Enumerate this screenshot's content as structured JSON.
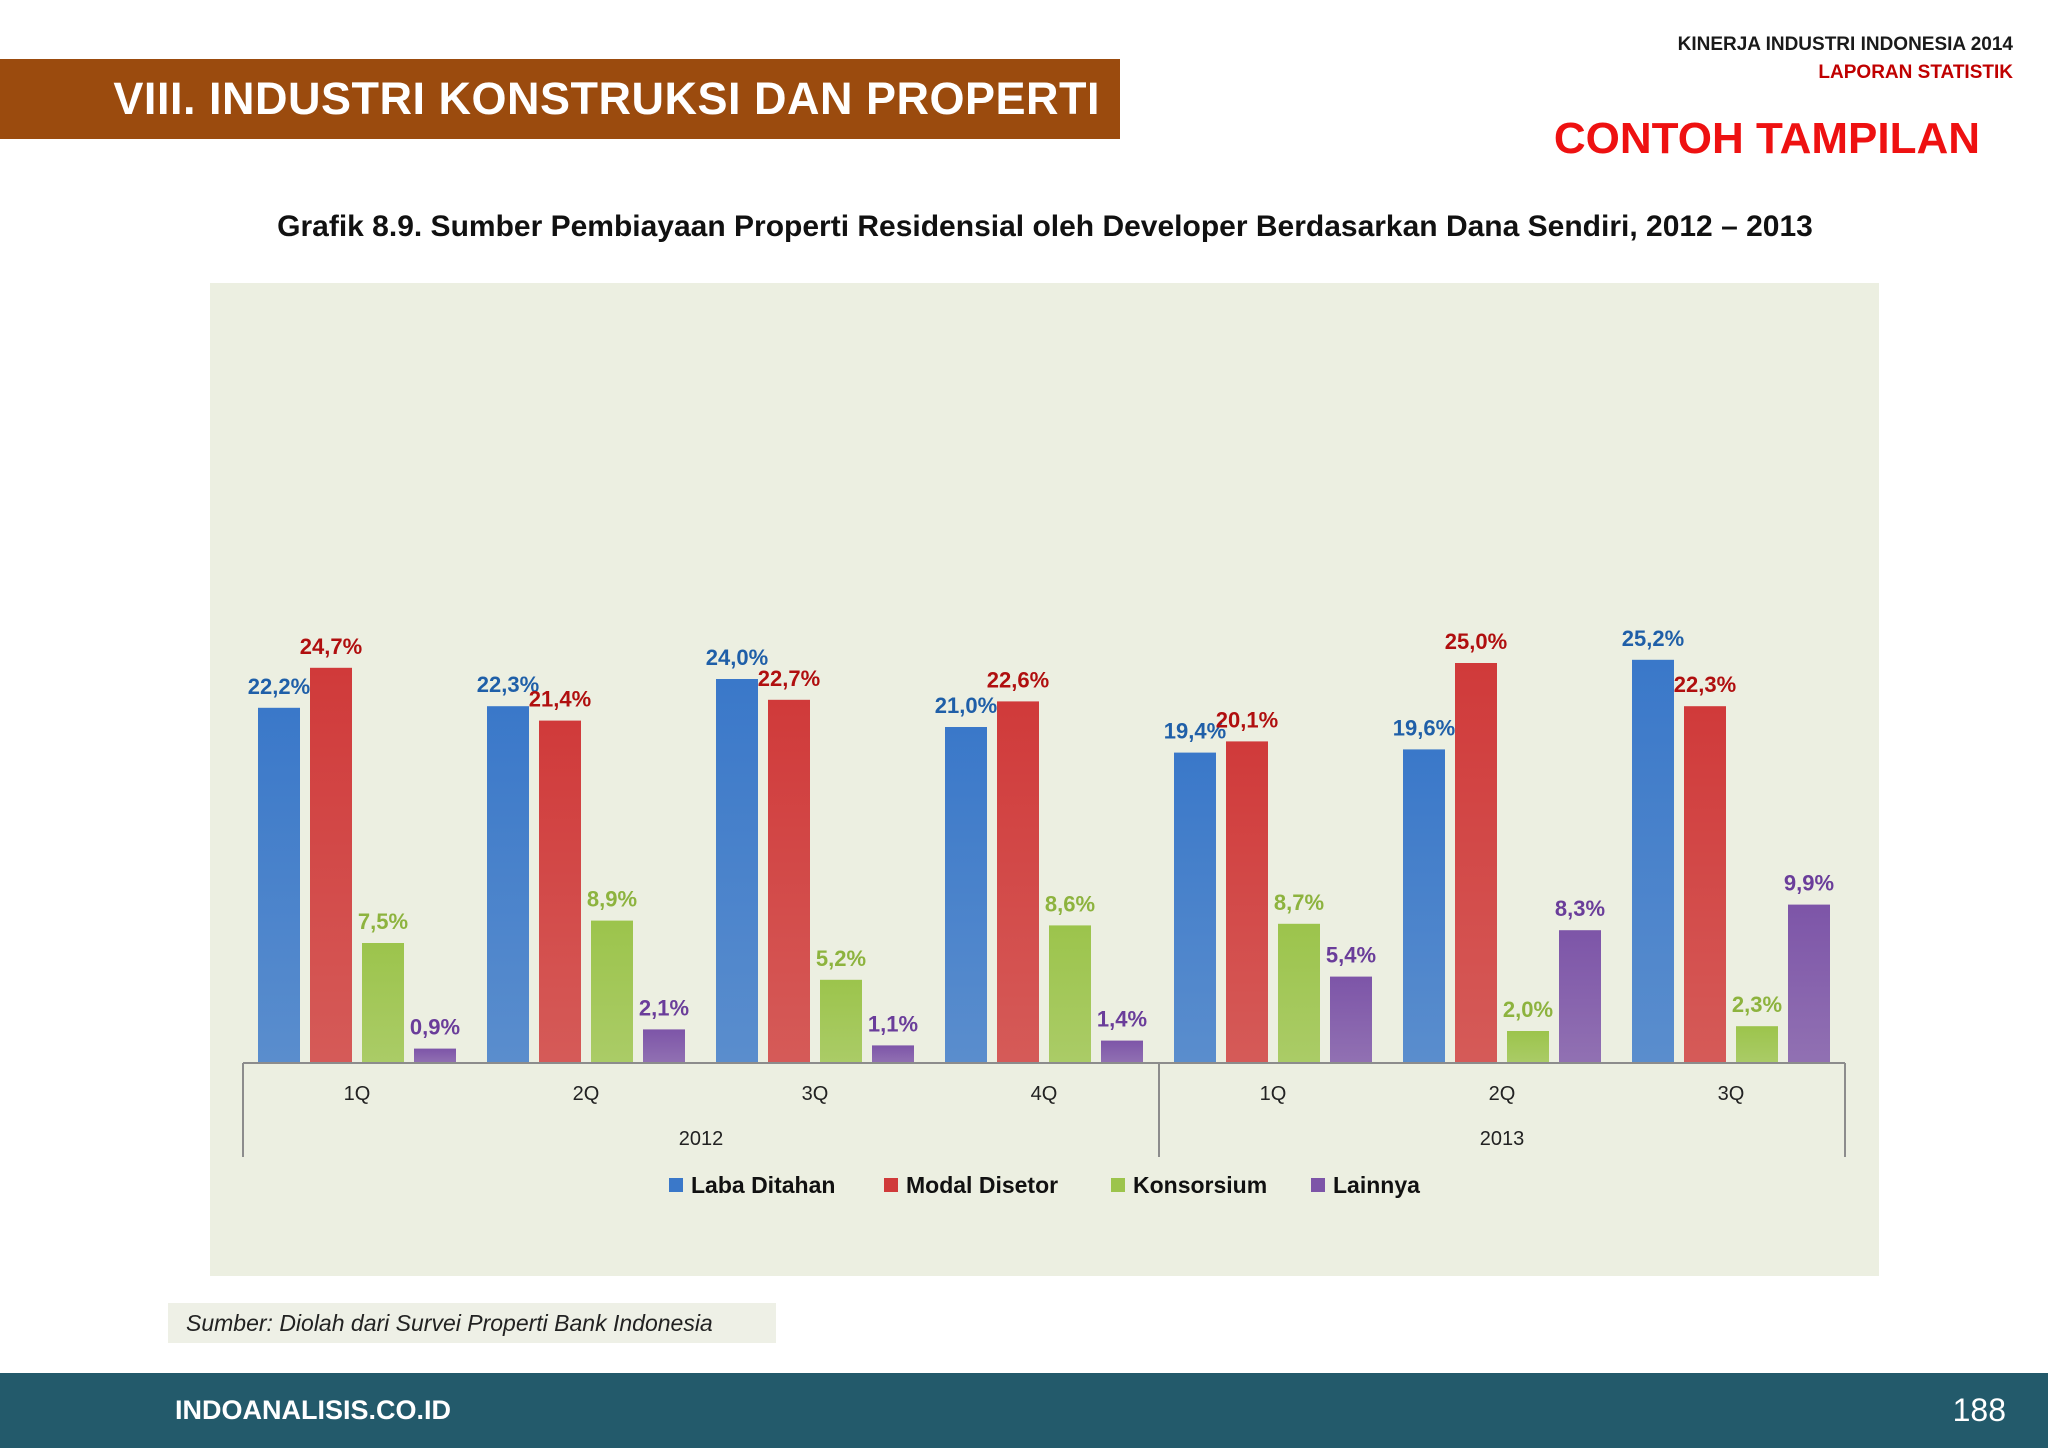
{
  "header": {
    "report_title": "KINERJA INDUSTRI INDONESIA  2014",
    "report_subtitle": "LAPORAN STATISTIK",
    "section_title": "VIII. INDUSTRI KONSTRUKSI DAN PROPERTI",
    "stamp": "CONTOH TAMPILAN"
  },
  "chart_title": "Grafik 8.9. Sumber Pembiayaan Properti Residensial oleh Developer Berdasarkan Dana Sendiri, 2012 – 2013",
  "chart_data": {
    "type": "bar",
    "categories": [
      "1Q",
      "2Q",
      "3Q",
      "4Q",
      "1Q",
      "2Q",
      "3Q"
    ],
    "groups": [
      {
        "label": "2012",
        "count": 4
      },
      {
        "label": "2013",
        "count": 3
      }
    ],
    "series": [
      {
        "name": "Laba Ditahan",
        "color": "#3a78c9",
        "label_color": "#1f5fa8",
        "values": [
          22.2,
          22.3,
          24.0,
          21.0,
          19.4,
          19.6,
          25.2
        ],
        "labels": [
          "22,2%",
          "22,3%",
          "24,0%",
          "21,0%",
          "19,4%",
          "19,6%",
          "25,2%"
        ]
      },
      {
        "name": "Modal Disetor",
        "color": "#d03a3a",
        "label_color": "#b00f0f",
        "values": [
          24.7,
          21.4,
          22.7,
          22.6,
          20.1,
          25.0,
          22.3
        ],
        "labels": [
          "24,7%",
          "21,4%",
          "22,7%",
          "22,6%",
          "20,1%",
          "25,0%",
          "22,3%"
        ]
      },
      {
        "name": "Konsorsium",
        "color": "#9cc44c",
        "label_color": "#8db33e",
        "values": [
          7.5,
          8.9,
          5.2,
          8.6,
          8.7,
          2.0,
          2.3
        ],
        "labels": [
          "7,5%",
          "8,9%",
          "5,2%",
          "8,6%",
          "8,7%",
          "2,0%",
          "2,3%"
        ]
      },
      {
        "name": "Lainnya",
        "color": "#7d55a8",
        "label_color": "#6a3d9a",
        "values": [
          0.9,
          2.1,
          1.1,
          1.4,
          5.4,
          8.3,
          9.9
        ],
        "labels": [
          "0,9%",
          "2,1%",
          "1,1%",
          "1,4%",
          "5,4%",
          "8,3%",
          "9,9%"
        ]
      }
    ],
    "legend_position": "bottom",
    "grid": false
  },
  "source": "Sumber: Diolah dari Survei Properti Bank Indonesia",
  "footer": {
    "site": "INDOANALISIS.CO.ID",
    "page_number": "188"
  }
}
